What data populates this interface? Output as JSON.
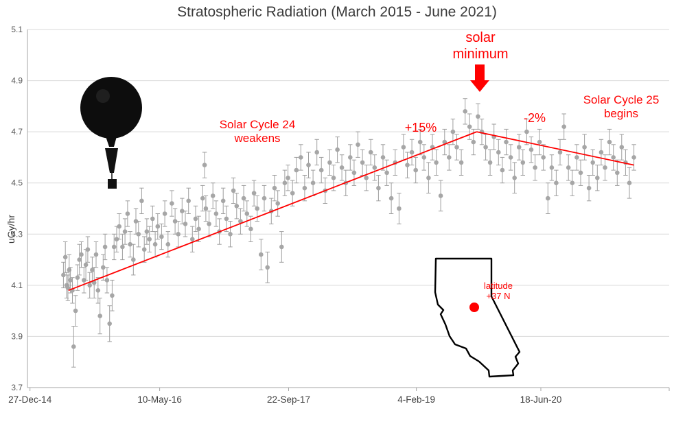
{
  "title": "Stratospheric Radiation (March 2015 - June 2021)",
  "y_axis_label": "uGy/hr",
  "annotations": {
    "solar_minimum": {
      "line1": "solar",
      "line2": "minimum"
    },
    "cycle24": {
      "line1": "Solar Cycle 24",
      "line2": "weakens"
    },
    "plus15": "+15%",
    "minus2": "-2%",
    "cycle25": {
      "line1": "Solar Cycle 25",
      "line2": "begins"
    },
    "latitude": {
      "line1": "latitude",
      "line2": "+37 N"
    }
  },
  "colors": {
    "accent": "#ff0000",
    "point": "#a6a6a6",
    "errorbar": "#9e9e9e",
    "grid": "#d9d9d9",
    "axis": "#a6a6a6",
    "text": "#3a3a3a"
  },
  "chart_data": {
    "type": "scatter",
    "title": "Stratospheric Radiation (March 2015 - June 2021)",
    "xlabel": "",
    "ylabel": "uGy/hr",
    "ylim": [
      3.7,
      5.1
    ],
    "yticks": [
      3.7,
      3.9,
      4.1,
      4.3,
      4.5,
      4.7,
      4.9,
      5.1
    ],
    "xticks": [
      {
        "label": "27-Dec-14",
        "f": 0.004
      },
      {
        "label": "10-May-16",
        "f": 0.206
      },
      {
        "label": "22-Sep-17",
        "f": 0.407
      },
      {
        "label": "4-Feb-19",
        "f": 0.606
      },
      {
        "label": "18-Jun-20",
        "f": 0.8
      }
    ],
    "grid": "horizontal",
    "error_bars": true,
    "legend": "none",
    "points": [
      [
        0.056,
        4.14,
        0.05
      ],
      [
        0.059,
        4.21,
        0.06
      ],
      [
        0.061,
        4.1,
        0.05
      ],
      [
        0.063,
        4.09,
        0.05
      ],
      [
        0.065,
        4.16,
        0.06
      ],
      [
        0.067,
        4.12,
        0.05
      ],
      [
        0.07,
        4.08,
        0.05
      ],
      [
        0.072,
        3.86,
        0.08
      ],
      [
        0.075,
        4.0,
        0.06
      ],
      [
        0.078,
        4.13,
        0.05
      ],
      [
        0.081,
        4.2,
        0.06
      ],
      [
        0.084,
        4.22,
        0.05
      ],
      [
        0.088,
        4.12,
        0.05
      ],
      [
        0.091,
        4.18,
        0.06
      ],
      [
        0.094,
        4.24,
        0.05
      ],
      [
        0.097,
        4.1,
        0.05
      ],
      [
        0.101,
        4.16,
        0.05
      ],
      [
        0.104,
        4.11,
        0.06
      ],
      [
        0.107,
        4.22,
        0.05
      ],
      [
        0.11,
        4.08,
        0.05
      ],
      [
        0.113,
        3.98,
        0.07
      ],
      [
        0.118,
        4.17,
        0.05
      ],
      [
        0.121,
        4.25,
        0.05
      ],
      [
        0.124,
        4.12,
        0.05
      ],
      [
        0.128,
        3.95,
        0.07
      ],
      [
        0.132,
        4.06,
        0.06
      ],
      [
        0.135,
        4.25,
        0.05
      ],
      [
        0.139,
        4.28,
        0.05
      ],
      [
        0.143,
        4.33,
        0.05
      ],
      [
        0.148,
        4.25,
        0.05
      ],
      [
        0.152,
        4.31,
        0.05
      ],
      [
        0.156,
        4.38,
        0.05
      ],
      [
        0.16,
        4.26,
        0.05
      ],
      [
        0.165,
        4.2,
        0.06
      ],
      [
        0.169,
        4.35,
        0.05
      ],
      [
        0.173,
        4.3,
        0.05
      ],
      [
        0.178,
        4.43,
        0.05
      ],
      [
        0.182,
        4.24,
        0.05
      ],
      [
        0.186,
        4.31,
        0.05
      ],
      [
        0.19,
        4.28,
        0.05
      ],
      [
        0.195,
        4.36,
        0.05
      ],
      [
        0.199,
        4.26,
        0.05
      ],
      [
        0.203,
        4.33,
        0.05
      ],
      [
        0.209,
        4.29,
        0.05
      ],
      [
        0.214,
        4.38,
        0.05
      ],
      [
        0.219,
        4.26,
        0.05
      ],
      [
        0.225,
        4.42,
        0.05
      ],
      [
        0.23,
        4.35,
        0.05
      ],
      [
        0.235,
        4.3,
        0.05
      ],
      [
        0.241,
        4.39,
        0.05
      ],
      [
        0.246,
        4.34,
        0.05
      ],
      [
        0.251,
        4.43,
        0.05
      ],
      [
        0.257,
        4.28,
        0.05
      ],
      [
        0.262,
        4.36,
        0.05
      ],
      [
        0.267,
        4.32,
        0.05
      ],
      [
        0.273,
        4.44,
        0.05
      ],
      [
        0.276,
        4.57,
        0.05
      ],
      [
        0.278,
        4.4,
        0.05
      ],
      [
        0.283,
        4.34,
        0.05
      ],
      [
        0.289,
        4.45,
        0.05
      ],
      [
        0.294,
        4.38,
        0.05
      ],
      [
        0.299,
        4.31,
        0.05
      ],
      [
        0.305,
        4.43,
        0.05
      ],
      [
        0.31,
        4.36,
        0.05
      ],
      [
        0.316,
        4.3,
        0.05
      ],
      [
        0.321,
        4.47,
        0.05
      ],
      [
        0.326,
        4.41,
        0.05
      ],
      [
        0.332,
        4.35,
        0.05
      ],
      [
        0.337,
        4.44,
        0.05
      ],
      [
        0.342,
        4.38,
        0.05
      ],
      [
        0.348,
        4.32,
        0.05
      ],
      [
        0.353,
        4.46,
        0.05
      ],
      [
        0.358,
        4.4,
        0.05
      ],
      [
        0.364,
        4.22,
        0.06
      ],
      [
        0.369,
        4.44,
        0.05
      ],
      [
        0.374,
        4.17,
        0.06
      ],
      [
        0.38,
        4.39,
        0.05
      ],
      [
        0.385,
        4.48,
        0.05
      ],
      [
        0.39,
        4.42,
        0.05
      ],
      [
        0.396,
        4.25,
        0.06
      ],
      [
        0.401,
        4.5,
        0.05
      ],
      [
        0.406,
        4.52,
        0.05
      ],
      [
        0.413,
        4.46,
        0.05
      ],
      [
        0.419,
        4.55,
        0.05
      ],
      [
        0.426,
        4.6,
        0.05
      ],
      [
        0.432,
        4.48,
        0.05
      ],
      [
        0.438,
        4.57,
        0.05
      ],
      [
        0.445,
        4.5,
        0.05
      ],
      [
        0.451,
        4.62,
        0.05
      ],
      [
        0.458,
        4.55,
        0.05
      ],
      [
        0.464,
        4.47,
        0.05
      ],
      [
        0.471,
        4.58,
        0.05
      ],
      [
        0.477,
        4.52,
        0.05
      ],
      [
        0.483,
        4.63,
        0.05
      ],
      [
        0.49,
        4.56,
        0.05
      ],
      [
        0.496,
        4.5,
        0.05
      ],
      [
        0.503,
        4.6,
        0.05
      ],
      [
        0.509,
        4.54,
        0.05
      ],
      [
        0.515,
        4.65,
        0.05
      ],
      [
        0.522,
        4.58,
        0.05
      ],
      [
        0.528,
        4.52,
        0.05
      ],
      [
        0.535,
        4.62,
        0.05
      ],
      [
        0.541,
        4.56,
        0.05
      ],
      [
        0.547,
        4.48,
        0.05
      ],
      [
        0.554,
        4.6,
        0.05
      ],
      [
        0.56,
        4.54,
        0.05
      ],
      [
        0.567,
        4.44,
        0.06
      ],
      [
        0.573,
        4.58,
        0.05
      ],
      [
        0.579,
        4.4,
        0.06
      ],
      [
        0.586,
        4.64,
        0.05
      ],
      [
        0.592,
        4.57,
        0.05
      ],
      [
        0.599,
        4.62,
        0.05
      ],
      [
        0.605,
        4.55,
        0.05
      ],
      [
        0.612,
        4.66,
        0.05
      ],
      [
        0.618,
        4.6,
        0.05
      ],
      [
        0.625,
        4.52,
        0.06
      ],
      [
        0.631,
        4.64,
        0.05
      ],
      [
        0.637,
        4.58,
        0.05
      ],
      [
        0.644,
        4.45,
        0.06
      ],
      [
        0.65,
        4.66,
        0.05
      ],
      [
        0.657,
        4.6,
        0.05
      ],
      [
        0.663,
        4.7,
        0.05
      ],
      [
        0.669,
        4.64,
        0.05
      ],
      [
        0.676,
        4.58,
        0.05
      ],
      [
        0.682,
        4.78,
        0.05
      ],
      [
        0.689,
        4.72,
        0.05
      ],
      [
        0.695,
        4.66,
        0.05
      ],
      [
        0.702,
        4.76,
        0.05
      ],
      [
        0.708,
        4.7,
        0.05
      ],
      [
        0.714,
        4.64,
        0.05
      ],
      [
        0.721,
        4.58,
        0.05
      ],
      [
        0.727,
        4.68,
        0.05
      ],
      [
        0.734,
        4.62,
        0.05
      ],
      [
        0.74,
        4.55,
        0.05
      ],
      [
        0.746,
        4.66,
        0.05
      ],
      [
        0.753,
        4.6,
        0.05
      ],
      [
        0.759,
        4.52,
        0.06
      ],
      [
        0.766,
        4.64,
        0.05
      ],
      [
        0.772,
        4.58,
        0.05
      ],
      [
        0.778,
        4.7,
        0.05
      ],
      [
        0.785,
        4.63,
        0.05
      ],
      [
        0.791,
        4.56,
        0.05
      ],
      [
        0.798,
        4.66,
        0.05
      ],
      [
        0.804,
        4.6,
        0.05
      ],
      [
        0.811,
        4.44,
        0.06
      ],
      [
        0.817,
        4.56,
        0.05
      ],
      [
        0.824,
        4.5,
        0.05
      ],
      [
        0.83,
        4.62,
        0.05
      ],
      [
        0.836,
        4.72,
        0.05
      ],
      [
        0.843,
        4.56,
        0.05
      ],
      [
        0.849,
        4.5,
        0.05
      ],
      [
        0.856,
        4.6,
        0.05
      ],
      [
        0.862,
        4.54,
        0.05
      ],
      [
        0.868,
        4.64,
        0.05
      ],
      [
        0.875,
        4.48,
        0.05
      ],
      [
        0.881,
        4.58,
        0.05
      ],
      [
        0.888,
        4.52,
        0.05
      ],
      [
        0.894,
        4.62,
        0.05
      ],
      [
        0.9,
        4.56,
        0.05
      ],
      [
        0.907,
        4.66,
        0.05
      ],
      [
        0.913,
        4.6,
        0.05
      ],
      [
        0.919,
        4.54,
        0.05
      ],
      [
        0.926,
        4.64,
        0.05
      ],
      [
        0.932,
        4.58,
        0.05
      ],
      [
        0.938,
        4.5,
        0.06
      ],
      [
        0.945,
        4.6,
        0.05
      ]
    ],
    "trend_lines": [
      {
        "x1": 0.064,
        "y1": 4.08,
        "x2": 0.7,
        "y2": 4.7
      },
      {
        "x1": 0.7,
        "y1": 4.7,
        "x2": 0.945,
        "y2": 4.57
      }
    ]
  }
}
